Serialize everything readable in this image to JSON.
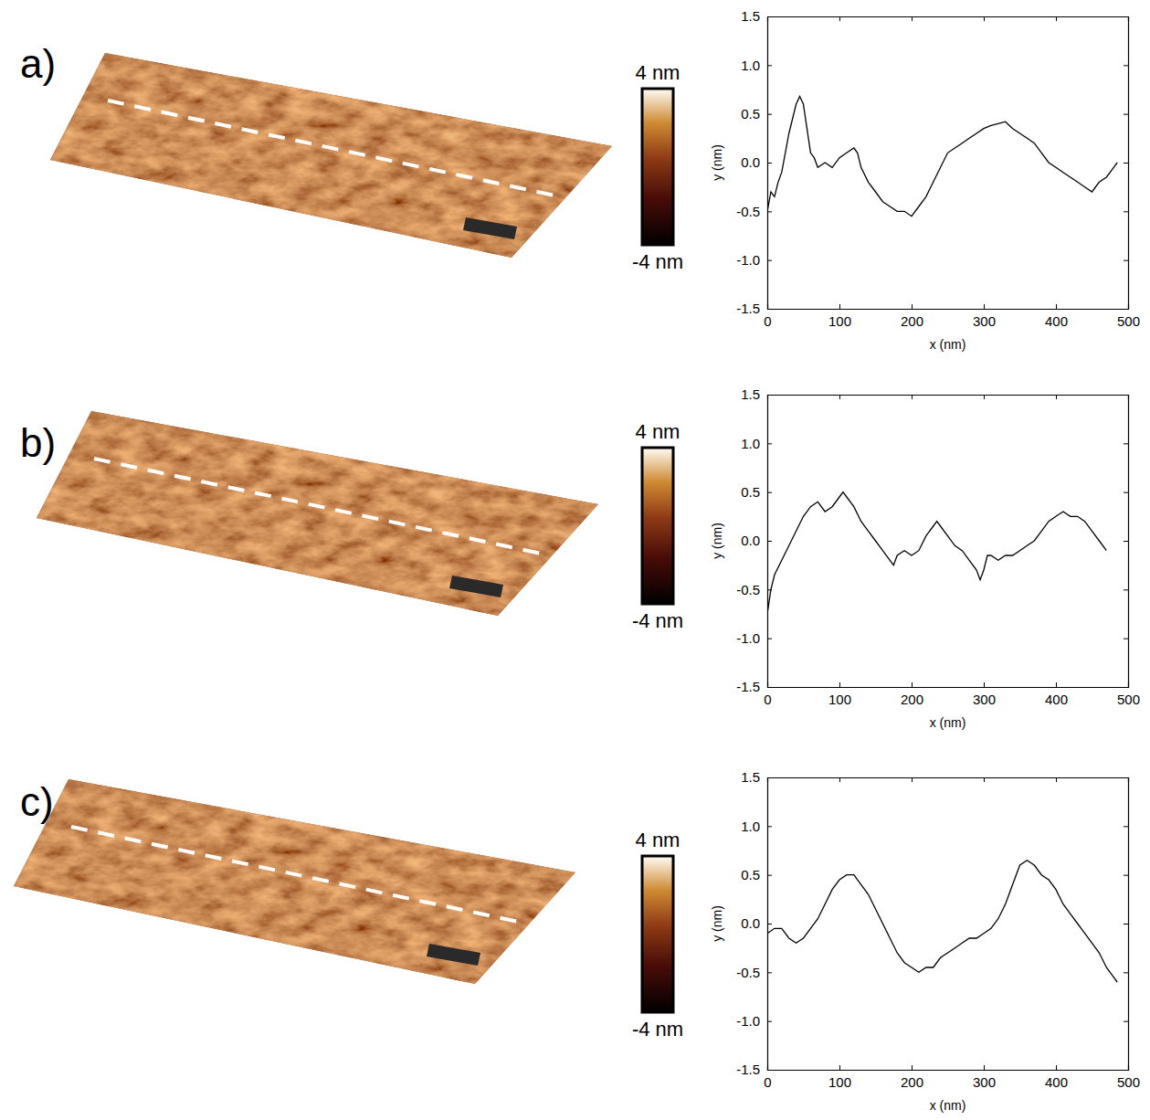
{
  "chart_data": [
    {
      "type": "line",
      "panel": "a)",
      "x_label": "x (nm)",
      "y_label": "y (nm)",
      "color": "#000000",
      "grid": false,
      "colorbar": {
        "range": [
          -4,
          4
        ],
        "ticks": [
          {
            "value": 4,
            "label": "4 nm"
          },
          {
            "value": -4,
            "label": "-4 nm"
          }
        ]
      },
      "xlim": [
        0,
        500
      ],
      "xticks": [
        0,
        100,
        200,
        300,
        400,
        500
      ],
      "ylim": [
        -1.5,
        1.5
      ],
      "yticks": [
        -1.5,
        {
          "value": -1,
          "label": "-1.0"
        },
        -0.5,
        {
          "value": 0,
          "label": "0.0"
        },
        0.5,
        {
          "value": 1,
          "label": "1.0"
        },
        1.5
      ],
      "x": [
        0,
        5,
        10,
        15,
        20,
        25,
        30,
        35,
        40,
        45,
        50,
        55,
        60,
        65,
        70,
        80,
        90,
        100,
        110,
        120,
        125,
        130,
        140,
        150,
        160,
        170,
        180,
        190,
        200,
        210,
        220,
        230,
        240,
        250,
        260,
        270,
        280,
        290,
        300,
        310,
        320,
        330,
        340,
        350,
        360,
        370,
        380,
        390,
        400,
        410,
        420,
        430,
        440,
        450,
        460,
        470,
        480,
        485
      ],
      "values": [
        -0.5,
        -0.3,
        -0.35,
        -0.2,
        -0.1,
        0.1,
        0.3,
        0.45,
        0.6,
        0.68,
        0.6,
        0.35,
        0.1,
        0.05,
        -0.05,
        0.0,
        -0.05,
        0.05,
        0.1,
        0.15,
        0.1,
        -0.05,
        -0.2,
        -0.3,
        -0.4,
        -0.45,
        -0.5,
        -0.5,
        -0.55,
        -0.45,
        -0.35,
        -0.2,
        -0.05,
        0.1,
        0.15,
        0.2,
        0.25,
        0.3,
        0.35,
        0.38,
        0.4,
        0.42,
        0.35,
        0.3,
        0.25,
        0.2,
        0.1,
        0.0,
        -0.05,
        -0.1,
        -0.15,
        -0.2,
        -0.25,
        -0.3,
        -0.2,
        -0.15,
        -0.05,
        0.0
      ]
    },
    {
      "type": "line",
      "panel": "b)",
      "x_label": "x (nm)",
      "y_label": "y (nm)",
      "color": "#000000",
      "grid": false,
      "colorbar": {
        "range": [
          -4,
          4
        ],
        "ticks": [
          {
            "value": 4,
            "label": "4 nm"
          },
          {
            "value": -4,
            "label": "-4 nm"
          }
        ]
      },
      "xlim": [
        0,
        500
      ],
      "xticks": [
        0,
        100,
        200,
        300,
        400,
        500
      ],
      "ylim": [
        -1.5,
        1.5
      ],
      "yticks": [
        -1.5,
        {
          "value": -1,
          "label": "-1.0"
        },
        -0.5,
        {
          "value": 0,
          "label": "0.0"
        },
        0.5,
        {
          "value": 1,
          "label": "1.0"
        },
        1.5
      ],
      "x": [
        0,
        5,
        10,
        20,
        30,
        40,
        50,
        60,
        70,
        80,
        90,
        100,
        105,
        110,
        120,
        130,
        140,
        150,
        160,
        170,
        175,
        180,
        190,
        200,
        210,
        220,
        230,
        235,
        240,
        250,
        260,
        270,
        280,
        290,
        295,
        300,
        305,
        310,
        320,
        330,
        340,
        350,
        360,
        370,
        380,
        390,
        400,
        410,
        420,
        430,
        440,
        450,
        460,
        470
      ],
      "values": [
        -0.75,
        -0.5,
        -0.35,
        -0.2,
        -0.05,
        0.1,
        0.25,
        0.35,
        0.4,
        0.3,
        0.35,
        0.45,
        0.5,
        0.45,
        0.35,
        0.2,
        0.1,
        0.0,
        -0.1,
        -0.2,
        -0.25,
        -0.15,
        -0.1,
        -0.15,
        -0.1,
        0.05,
        0.15,
        0.2,
        0.15,
        0.05,
        -0.05,
        -0.1,
        -0.2,
        -0.3,
        -0.4,
        -0.3,
        -0.15,
        -0.15,
        -0.2,
        -0.15,
        -0.15,
        -0.1,
        -0.05,
        0.0,
        0.1,
        0.2,
        0.25,
        0.3,
        0.25,
        0.25,
        0.2,
        0.1,
        0.0,
        -0.1
      ]
    },
    {
      "type": "line",
      "panel": "c)",
      "x_label": "x (nm)",
      "y_label": "y (nm)",
      "color": "#000000",
      "grid": false,
      "colorbar": {
        "range": [
          -4,
          4
        ],
        "ticks": [
          {
            "value": 4,
            "label": "4 nm"
          },
          {
            "value": -4,
            "label": "-4 nm"
          }
        ]
      },
      "xlim": [
        0,
        500
      ],
      "xticks": [
        0,
        100,
        200,
        300,
        400,
        500
      ],
      "ylim": [
        -1.5,
        1.5
      ],
      "yticks": [
        -1.5,
        {
          "value": -1,
          "label": "-1.0"
        },
        -0.5,
        {
          "value": 0,
          "label": "0.0"
        },
        0.5,
        {
          "value": 1,
          "label": "1.0"
        },
        1.5
      ],
      "x": [
        0,
        10,
        20,
        30,
        40,
        50,
        60,
        70,
        80,
        90,
        100,
        110,
        120,
        130,
        140,
        150,
        160,
        170,
        180,
        190,
        200,
        210,
        220,
        230,
        240,
        250,
        260,
        270,
        280,
        290,
        300,
        310,
        320,
        330,
        340,
        350,
        360,
        370,
        380,
        390,
        400,
        410,
        420,
        430,
        440,
        450,
        460,
        470,
        480,
        485
      ],
      "values": [
        -0.1,
        -0.05,
        -0.05,
        -0.15,
        -0.2,
        -0.15,
        -0.05,
        0.05,
        0.2,
        0.35,
        0.45,
        0.5,
        0.5,
        0.4,
        0.3,
        0.15,
        0.0,
        -0.15,
        -0.3,
        -0.4,
        -0.45,
        -0.5,
        -0.45,
        -0.45,
        -0.35,
        -0.3,
        -0.25,
        -0.2,
        -0.15,
        -0.15,
        -0.1,
        -0.05,
        0.05,
        0.2,
        0.4,
        0.6,
        0.65,
        0.6,
        0.5,
        0.45,
        0.35,
        0.2,
        0.1,
        0.0,
        -0.1,
        -0.2,
        -0.3,
        -0.45,
        -0.55,
        -0.6
      ]
    }
  ]
}
